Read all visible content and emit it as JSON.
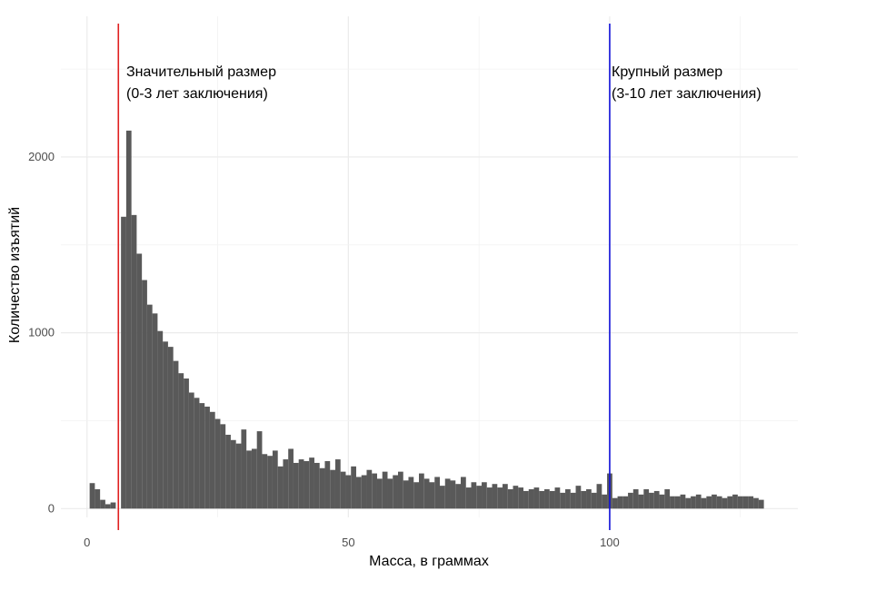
{
  "chart_data": {
    "type": "bar",
    "xlabel": "Масса, в граммах",
    "ylabel": "Количество изъятий",
    "xlim": [
      -5,
      136
    ],
    "ylim": [
      -50,
      2800
    ],
    "x_ticks": [
      0,
      50,
      100
    ],
    "y_ticks": [
      0,
      1000,
      2000
    ],
    "grid": true,
    "bar_color": "#595959",
    "bin_width": 1,
    "bins_start": 0.5,
    "values": [
      145,
      110,
      50,
      25,
      35,
      0,
      1660,
      2150,
      1670,
      1450,
      1300,
      1160,
      1110,
      1010,
      950,
      920,
      840,
      770,
      740,
      660,
      630,
      600,
      580,
      550,
      510,
      480,
      420,
      390,
      370,
      450,
      330,
      340,
      440,
      310,
      300,
      330,
      240,
      280,
      340,
      260,
      280,
      270,
      290,
      260,
      230,
      270,
      220,
      280,
      210,
      190,
      240,
      180,
      190,
      220,
      200,
      170,
      210,
      170,
      190,
      210,
      160,
      180,
      150,
      200,
      170,
      150,
      180,
      130,
      170,
      160,
      140,
      180,
      120,
      150,
      130,
      150,
      120,
      140,
      120,
      140,
      110,
      130,
      120,
      100,
      110,
      120,
      100,
      110,
      100,
      120,
      90,
      110,
      90,
      130,
      100,
      110,
      90,
      140,
      80,
      200,
      60,
      70,
      70,
      90,
      110,
      80,
      110,
      90,
      100,
      80,
      110,
      70,
      70,
      80,
      60,
      70,
      80,
      60,
      70,
      80,
      70,
      60,
      70,
      80,
      70,
      70,
      70,
      60,
      50
    ],
    "reference_lines": [
      {
        "x": 6,
        "color": "#e02020",
        "label_line1": "Значительный размер",
        "label_line2": "(0-3 лет заключения)"
      },
      {
        "x": 100,
        "color": "#1010d8",
        "label_line1": "Крупный размер",
        "label_line2": "(3-10 лет заключения)"
      }
    ]
  }
}
